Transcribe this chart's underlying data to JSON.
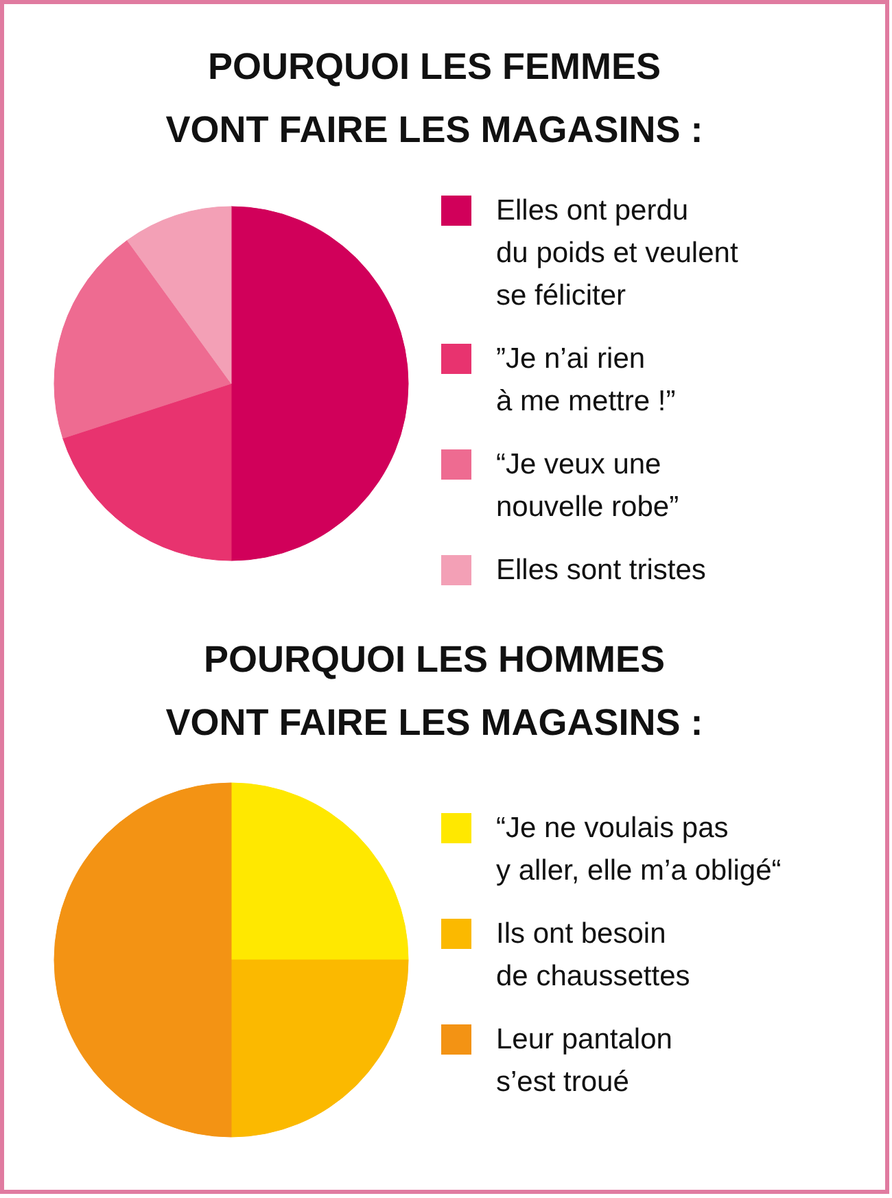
{
  "chart_data": [
    {
      "type": "pie",
      "title": "POURQUOI LES FEMMES\nVONT FAIRE LES MAGASINS :",
      "legend": "right",
      "categories": [
        "Elles ont perdu\ndu poids et veulent\nse féliciter",
        "”Je n’ai rien\nà me mettre !”",
        "“Je veux une\nnouvelle robe”",
        "Elles sont tristes"
      ],
      "values": [
        50,
        20,
        20,
        10
      ],
      "colors": [
        "#d1005a",
        "#e8336f",
        "#ee6b91",
        "#f3a0b6"
      ]
    },
    {
      "type": "pie",
      "title": "POURQUOI LES HOMMES\nVONT FAIRE LES MAGASINS :",
      "legend": "right",
      "categories": [
        "“Je ne voulais pas\ny aller, elle m’a obligé“",
        "Ils ont besoin\nde chaussettes",
        "Leur pantalon\ns’est troué"
      ],
      "values": [
        25,
        25,
        50
      ],
      "colors": [
        "#ffe800",
        "#fbb900",
        "#f39314"
      ]
    }
  ]
}
